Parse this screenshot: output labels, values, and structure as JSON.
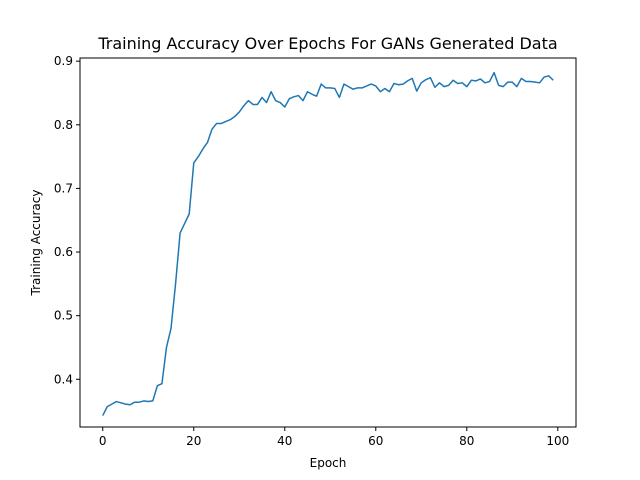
{
  "chart_data": {
    "type": "line",
    "title": "Training Accuracy Over Epochs For GANs Generated Data",
    "xlabel": "Epoch",
    "ylabel": "Training Accuracy",
    "xlim": [
      -5,
      104
    ],
    "ylim": [
      0.325,
      0.905
    ],
    "xticks": [
      0,
      20,
      40,
      60,
      80,
      100
    ],
    "yticks": [
      0.4,
      0.5,
      0.6,
      0.7,
      0.8,
      0.9
    ],
    "xtick_labels": [
      "0",
      "20",
      "40",
      "60",
      "80",
      "100"
    ],
    "ytick_labels": [
      "0.4",
      "0.5",
      "0.6",
      "0.7",
      "0.8",
      "0.9"
    ],
    "grid": false,
    "series": [
      {
        "color": "#1f77b4",
        "x": [
          0,
          1,
          2,
          3,
          4,
          5,
          6,
          7,
          8,
          9,
          10,
          11,
          12,
          13,
          14,
          15,
          16,
          17,
          18,
          19,
          20,
          21,
          22,
          23,
          24,
          25,
          26,
          27,
          28,
          29,
          30,
          31,
          32,
          33,
          34,
          35,
          36,
          37,
          38,
          39,
          40,
          41,
          42,
          43,
          44,
          45,
          46,
          47,
          48,
          49,
          50,
          51,
          52,
          53,
          54,
          55,
          56,
          57,
          58,
          59,
          60,
          61,
          62,
          63,
          64,
          65,
          66,
          67,
          68,
          69,
          70,
          71,
          72,
          73,
          74,
          75,
          76,
          77,
          78,
          79,
          80,
          81,
          82,
          83,
          84,
          85,
          86,
          87,
          88,
          89,
          90,
          91,
          92,
          93,
          94,
          95,
          96,
          97,
          98,
          99
        ],
        "y": [
          0.343,
          0.357,
          0.361,
          0.365,
          0.363,
          0.361,
          0.36,
          0.364,
          0.364,
          0.366,
          0.365,
          0.366,
          0.39,
          0.393,
          0.45,
          0.48,
          0.55,
          0.63,
          0.645,
          0.66,
          0.74,
          0.75,
          0.762,
          0.772,
          0.793,
          0.802,
          0.802,
          0.805,
          0.808,
          0.813,
          0.82,
          0.83,
          0.838,
          0.832,
          0.832,
          0.843,
          0.835,
          0.852,
          0.838,
          0.835,
          0.828,
          0.841,
          0.844,
          0.846,
          0.838,
          0.852,
          0.848,
          0.845,
          0.864,
          0.858,
          0.858,
          0.857,
          0.843,
          0.864,
          0.86,
          0.856,
          0.858,
          0.858,
          0.861,
          0.864,
          0.861,
          0.852,
          0.857,
          0.852,
          0.865,
          0.863,
          0.864,
          0.869,
          0.873,
          0.853,
          0.866,
          0.871,
          0.874,
          0.859,
          0.866,
          0.86,
          0.862,
          0.87,
          0.865,
          0.866,
          0.86,
          0.87,
          0.869,
          0.872,
          0.866,
          0.868,
          0.882,
          0.862,
          0.86,
          0.867,
          0.867,
          0.86,
          0.873,
          0.868,
          0.868,
          0.867,
          0.866,
          0.875,
          0.877,
          0.87
        ]
      }
    ]
  }
}
